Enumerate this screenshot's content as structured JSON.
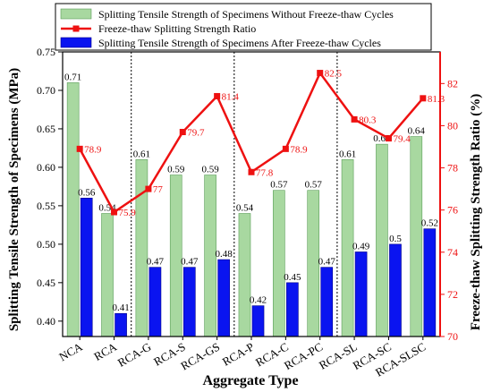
{
  "chart_data": {
    "type": "bar",
    "xlabel": "Aggregate Type",
    "ylabel_left": "Splitting Tensile Strength of Specimens  (MPa)",
    "ylabel_right": "Freeze-thaw Splitting Strength Ratio (%)",
    "categories": [
      "NCA",
      "RCA",
      "RCA-G",
      "RCA-S",
      "RCA-GS",
      "RCA-P",
      "RCA-C",
      "RCA-PC",
      "RCA-SL",
      "RCA-SC",
      "RCA-SLSC"
    ],
    "ylim_left": [
      0.38,
      0.75
    ],
    "yticks_left": [
      "0.40",
      "0.45",
      "0.50",
      "0.55",
      "0.60",
      "0.65",
      "0.70",
      "0.75"
    ],
    "ylim_right": [
      70,
      83.5
    ],
    "yticks_right": [
      "70",
      "72",
      "74",
      "76",
      "78",
      "80",
      "82"
    ],
    "legend_position": "top",
    "series": [
      {
        "name": "Splitting Tensile Strength of Specimens Without Freeze-thaw Cycles",
        "axis": "left",
        "kind": "bar",
        "color": "#a8d8a0",
        "values": [
          0.71,
          0.54,
          0.61,
          0.59,
          0.59,
          0.54,
          0.57,
          0.57,
          0.61,
          0.63,
          0.64
        ],
        "labels": [
          "0.71",
          "0.54",
          "0.61",
          "0.59",
          "0.59",
          "0.54",
          "0.57",
          "0.57",
          "0.61",
          "0.63",
          "0.64"
        ]
      },
      {
        "name": "Splitting Tensile Strength of Specimens After Freeze-thaw Cycles",
        "axis": "left",
        "kind": "bar",
        "color": "#0a14f0",
        "values": [
          0.56,
          0.41,
          0.47,
          0.47,
          0.48,
          0.42,
          0.45,
          0.47,
          0.49,
          0.5,
          0.52
        ],
        "labels": [
          "0.56",
          "0.41",
          "0.47",
          "0.47",
          "0.48",
          "0.42",
          "0.45",
          "0.47",
          "0.49",
          "0.5",
          "0.52"
        ]
      },
      {
        "name": "Freeze-thaw Splitting Strength Ratio",
        "axis": "right",
        "kind": "line",
        "color": "#ee1111",
        "values": [
          78.9,
          75.9,
          77.0,
          79.7,
          81.4,
          77.8,
          78.9,
          82.5,
          80.3,
          79.4,
          81.3
        ],
        "labels": [
          "78.9",
          "75.9",
          "77",
          "79.7",
          "81.4",
          "77.8",
          "78.9",
          "82.5",
          "80.3",
          "79.4",
          "81.3"
        ]
      }
    ],
    "legend_order": [
      0,
      2,
      1
    ],
    "group_separators_after_index": [
      1,
      4,
      7
    ]
  }
}
